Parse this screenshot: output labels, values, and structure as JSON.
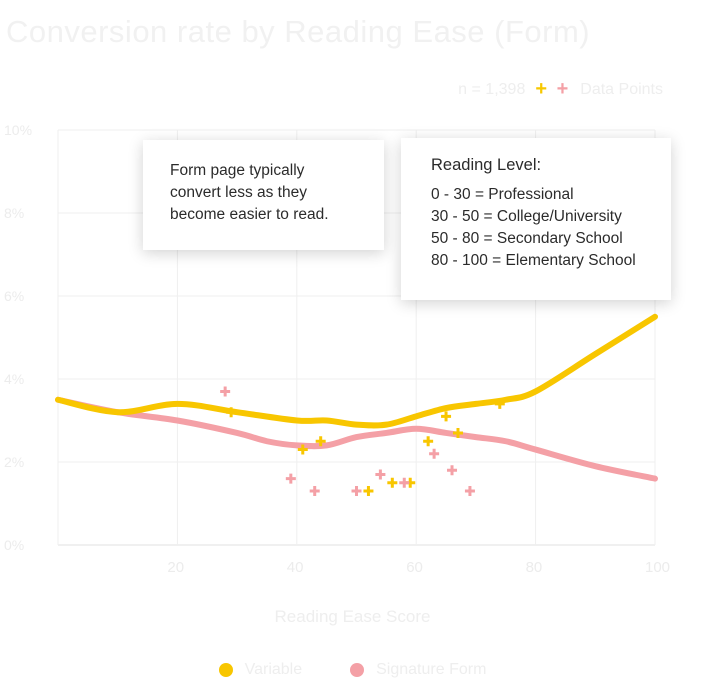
{
  "chart_data": {
    "type": "line",
    "title": "Conversion rate by Reading Ease (Form)",
    "xlabel": "Reading Ease Score",
    "ylabel": "",
    "xlim": [
      0,
      100
    ],
    "ylim": [
      0,
      10
    ],
    "x_ticks": [
      "20",
      "40",
      "60",
      "80",
      "100"
    ],
    "y_ticks": [
      "0%",
      "2%",
      "4%",
      "6%",
      "8%",
      "10%"
    ],
    "grid": true,
    "sample_text": "n = 1,398",
    "points_legend": "Data Points",
    "colors": {
      "yellow": "#f8c600",
      "pink": "#f4a0a6"
    },
    "series": [
      {
        "name": "Variable",
        "color": "#f8c600",
        "line": {
          "x": [
            0,
            10,
            20,
            30,
            40,
            45,
            50,
            55,
            60,
            65,
            70,
            75,
            80,
            90,
            100
          ],
          "y": [
            3.5,
            3.2,
            3.4,
            3.2,
            3.0,
            3.0,
            2.9,
            2.9,
            3.1,
            3.3,
            3.4,
            3.5,
            3.7,
            4.6,
            5.5
          ]
        },
        "points": [
          {
            "x": 29,
            "y": 3.2
          },
          {
            "x": 41,
            "y": 2.3
          },
          {
            "x": 44,
            "y": 2.5
          },
          {
            "x": 52,
            "y": 1.3
          },
          {
            "x": 56,
            "y": 1.5
          },
          {
            "x": 59,
            "y": 1.5
          },
          {
            "x": 62,
            "y": 2.5
          },
          {
            "x": 65,
            "y": 3.1
          },
          {
            "x": 67,
            "y": 2.7
          },
          {
            "x": 74,
            "y": 3.4
          }
        ]
      },
      {
        "name": "Signature Form",
        "color": "#f4a0a6",
        "line": {
          "x": [
            0,
            10,
            20,
            30,
            35,
            40,
            45,
            50,
            55,
            60,
            65,
            70,
            75,
            80,
            90,
            100
          ],
          "y": [
            3.5,
            3.2,
            3.0,
            2.7,
            2.5,
            2.4,
            2.4,
            2.6,
            2.7,
            2.8,
            2.7,
            2.6,
            2.5,
            2.3,
            1.9,
            1.6
          ]
        },
        "points": [
          {
            "x": 28,
            "y": 3.7
          },
          {
            "x": 39,
            "y": 1.6
          },
          {
            "x": 43,
            "y": 1.3
          },
          {
            "x": 50,
            "y": 1.3
          },
          {
            "x": 54,
            "y": 1.7
          },
          {
            "x": 58,
            "y": 1.5
          },
          {
            "x": 63,
            "y": 2.2
          },
          {
            "x": 66,
            "y": 1.8
          },
          {
            "x": 69,
            "y": 1.3
          }
        ]
      }
    ],
    "legend": [
      "Variable",
      "Signature Form"
    ],
    "legend_position": "bottom"
  },
  "callouts": {
    "form_note": {
      "lines": [
        "Form page typically",
        "convert less as they",
        "become easier to read."
      ]
    },
    "reading_level": {
      "heading": "Reading Level:",
      "rows": [
        "0 - 30 = Professional",
        "30 - 50 = College/University",
        "50 - 80 = Secondary School",
        "80 - 100 = Elementary School"
      ]
    }
  }
}
